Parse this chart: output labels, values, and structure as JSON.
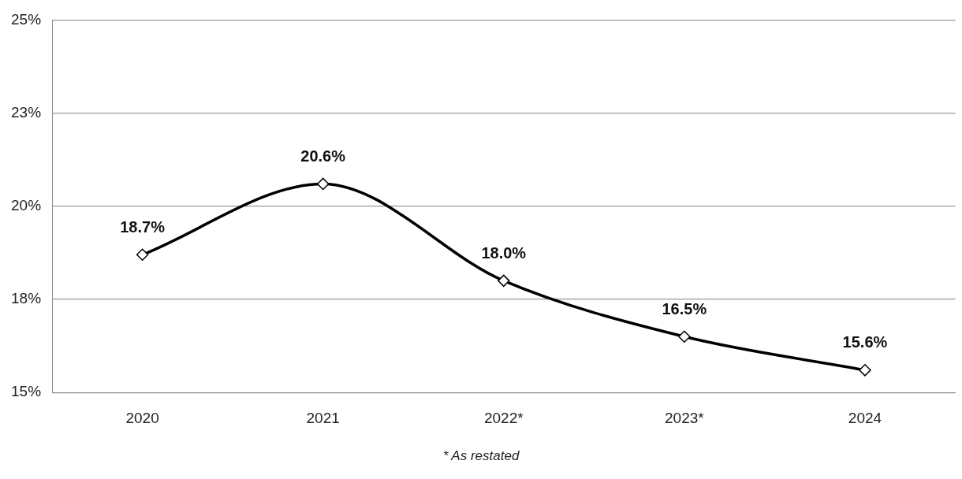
{
  "chart_data": {
    "type": "line",
    "categories": [
      "2020",
      "2021",
      "2022*",
      "2023*",
      "2024"
    ],
    "series": [
      {
        "color": "#000000",
        "values": [
          18.7,
          20.6,
          18.0,
          16.5,
          15.6
        ],
        "value_labels": [
          "18.7%",
          "20.6%",
          "18.0%",
          "16.5%",
          "15.6%"
        ]
      }
    ],
    "ylim": [
      15,
      25
    ],
    "yticks": [
      {
        "value": 15,
        "label": "15%"
      },
      {
        "value": 17.5,
        "label": "18%"
      },
      {
        "value": 20,
        "label": "20%"
      },
      {
        "value": 22.5,
        "label": "23%"
      },
      {
        "value": 25,
        "label": "25%"
      }
    ],
    "grid": "y",
    "legend": false,
    "marker": "diamond",
    "line_style": "solid",
    "annotations": [
      "* As restated"
    ]
  }
}
